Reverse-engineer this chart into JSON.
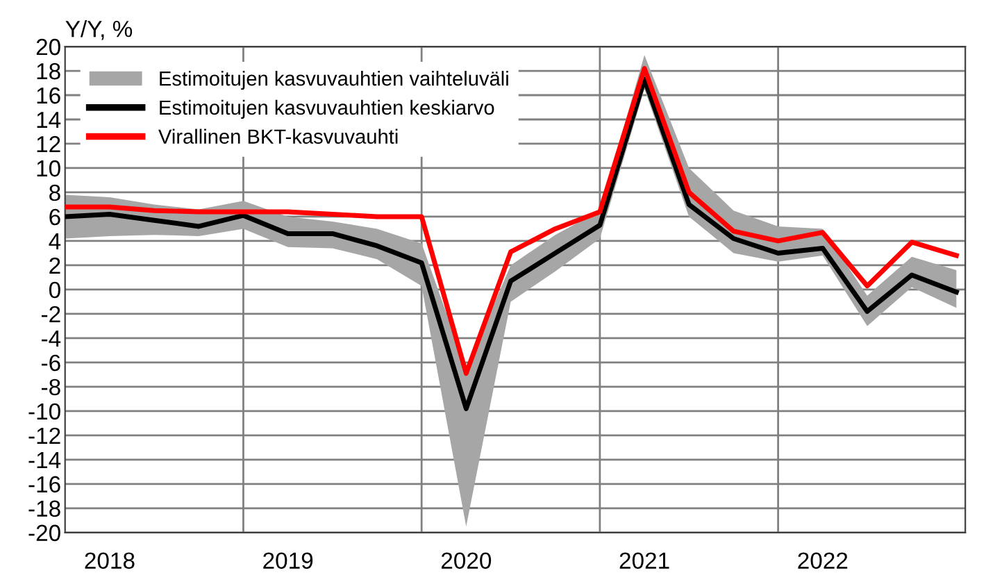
{
  "chart_data": {
    "type": "line",
    "ylabel": "Y/Y, %",
    "x": [
      2018.0,
      2018.25,
      2018.5,
      2018.75,
      2019.0,
      2019.25,
      2019.5,
      2019.75,
      2020.0,
      2020.25,
      2020.5,
      2020.75,
      2021.0,
      2021.25,
      2021.5,
      2021.75,
      2022.0,
      2022.25,
      2022.5,
      2022.75,
      2023.0
    ],
    "series": [
      {
        "name": "Estimoitujen kasvuvauhtien vaihteluväli",
        "type": "area",
        "color": "#a6a6a6",
        "values": [
          null,
          null,
          null,
          null,
          null,
          null,
          null,
          null,
          null,
          null,
          null,
          null,
          null,
          null,
          null,
          null,
          null,
          null,
          null,
          null,
          null
        ],
        "lower": [
          4.2,
          4.4,
          4.5,
          4.4,
          5.0,
          3.5,
          3.4,
          2.5,
          0.3,
          -19.5,
          -1.0,
          1.5,
          4.2,
          16.5,
          6.0,
          3.0,
          2.3,
          2.8,
          -3.0,
          0.2,
          -1.5
        ],
        "upper": [
          7.8,
          7.6,
          7.0,
          6.6,
          7.3,
          6.0,
          5.6,
          5.0,
          3.8,
          -6.5,
          2.0,
          4.5,
          6.5,
          19.3,
          10.0,
          6.5,
          5.2,
          5.0,
          -0.5,
          2.7,
          1.6
        ]
      },
      {
        "name": "Estimoitujen kasvuvauhtien keskiarvo",
        "color": "#000000",
        "values": [
          6.0,
          6.2,
          5.7,
          5.2,
          6.1,
          4.6,
          4.6,
          3.6,
          2.2,
          -9.8,
          0.7,
          3.0,
          5.3,
          17.3,
          7.0,
          4.2,
          3.0,
          3.4,
          -1.8,
          1.2,
          -0.2
        ]
      },
      {
        "name": "Virallinen BKT-kasvuvauhti",
        "color": "#ff0000",
        "values": [
          6.8,
          6.8,
          6.5,
          6.4,
          6.4,
          6.4,
          6.2,
          6.0,
          6.0,
          -6.9,
          3.1,
          5.0,
          6.4,
          18.2,
          8.0,
          4.8,
          4.0,
          4.7,
          0.3,
          3.9,
          2.8
        ]
      }
    ],
    "xlim": [
      2018.0,
      2023.05
    ],
    "xticks": [
      {
        "value": 2018.25,
        "label": "2018"
      },
      {
        "value": 2019.25,
        "label": "2019"
      },
      {
        "value": 2020.25,
        "label": "2020"
      },
      {
        "value": 2021.25,
        "label": "2021"
      },
      {
        "value": 2022.25,
        "label": "2022"
      }
    ],
    "ylim": [
      -20,
      20
    ],
    "yticks": [
      -20,
      -18,
      -16,
      -14,
      -12,
      -10,
      -8,
      -6,
      -4,
      -2,
      0,
      2,
      4,
      6,
      8,
      10,
      12,
      14,
      16,
      18,
      20
    ],
    "ref_lines": [
      {
        "axis": "x",
        "value": 2019.0,
        "color": "#808080"
      },
      {
        "axis": "x",
        "value": 2020.0,
        "color": "#808080"
      },
      {
        "axis": "x",
        "value": 2021.0,
        "color": "#808080"
      },
      {
        "axis": "x",
        "value": 2022.0,
        "color": "#808080"
      }
    ],
    "grid": "y",
    "legend": "top left",
    "marker": "none",
    "line_style": "solid"
  }
}
